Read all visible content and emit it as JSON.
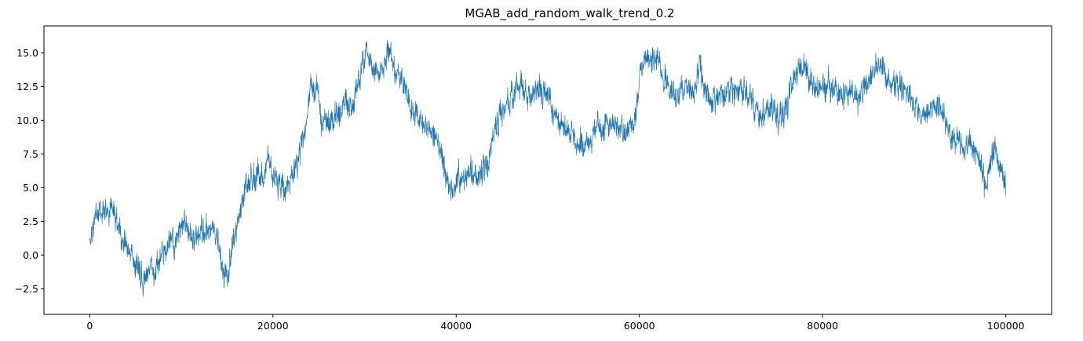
{
  "chart_data": {
    "type": "line",
    "title": "MGAB_add_random_walk_trend_0.2",
    "xlabel": "",
    "ylabel": "",
    "xlim": [
      -5000,
      105000
    ],
    "ylim": [
      -4.4,
      17.0
    ],
    "xticks": [
      0,
      20000,
      40000,
      60000,
      80000,
      100000
    ],
    "xtick_labels": [
      "0",
      "20000",
      "40000",
      "60000",
      "80000",
      "100000"
    ],
    "yticks": [
      -2.5,
      0.0,
      2.5,
      5.0,
      7.5,
      10.0,
      12.5,
      15.0
    ],
    "ytick_labels": [
      "−2.5",
      "0.0",
      "2.5",
      "5.0",
      "7.5",
      "10.0",
      "12.5",
      "15.0"
    ],
    "grid": false,
    "series": [
      {
        "color": "#1f77b4",
        "noise_amplitude": 0.6,
        "x": [
          0,
          400,
          1000,
          1800,
          2400,
          3000,
          3600,
          4200,
          5000,
          5800,
          6600,
          7400,
          8000,
          8800,
          9500,
          10300,
          11000,
          11800,
          12500,
          13300,
          14000,
          14500,
          15000,
          15600,
          16400,
          17200,
          18000,
          18800,
          19600,
          20400,
          21200,
          22000,
          22800,
          23600,
          24200,
          24800,
          25400,
          26200,
          27000,
          27800,
          28600,
          29400,
          30200,
          31000,
          31800,
          32600,
          33400,
          34200,
          35000,
          35800,
          36600,
          37400,
          38200,
          39000,
          39600,
          40200,
          41000,
          41800,
          42600,
          43400,
          44200,
          45000,
          45800,
          46600,
          47400,
          48200,
          49000,
          49800,
          50600,
          51400,
          52200,
          53000,
          53800,
          54600,
          55400,
          56200,
          57000,
          57800,
          58600,
          59400,
          60200,
          61000,
          61800,
          62600,
          63400,
          64200,
          65000,
          65800,
          66600,
          67400,
          68200,
          69000,
          69800,
          70600,
          71400,
          72200,
          73000,
          73800,
          74600,
          75400,
          76200,
          77000,
          77800,
          78600,
          79400,
          80200,
          81000,
          81800,
          82600,
          83400,
          84200,
          85000,
          85800,
          86600,
          87400,
          88200,
          89000,
          89800,
          90600,
          91400,
          92200,
          93000,
          93800,
          94600,
          95400,
          96200,
          97000,
          97800,
          98600,
          99400,
          100000
        ],
        "y": [
          0.8,
          2.2,
          3.2,
          3.1,
          3.6,
          2.4,
          1.2,
          0.5,
          -0.6,
          -1.8,
          -1.2,
          -0.8,
          0.2,
          1.0,
          0.8,
          2.4,
          1.6,
          1.2,
          1.9,
          2.1,
          1.2,
          -1.0,
          -2.2,
          0.6,
          2.8,
          5.4,
          5.8,
          6.0,
          7.0,
          5.2,
          4.8,
          5.6,
          7.2,
          9.8,
          12.8,
          12.2,
          9.8,
          10.0,
          10.2,
          11.2,
          11.0,
          13.2,
          15.2,
          14.2,
          13.6,
          15.0,
          13.6,
          12.8,
          11.0,
          10.8,
          9.8,
          9.2,
          7.8,
          5.6,
          4.6,
          5.8,
          6.2,
          5.8,
          6.0,
          6.4,
          9.0,
          10.6,
          11.4,
          12.4,
          12.2,
          11.6,
          12.8,
          11.8,
          10.8,
          9.8,
          9.2,
          8.8,
          8.2,
          8.6,
          9.4,
          9.2,
          9.8,
          9.6,
          9.0,
          9.8,
          13.8,
          15.0,
          14.4,
          13.6,
          12.0,
          11.6,
          12.4,
          12.2,
          13.8,
          11.8,
          11.4,
          11.8,
          12.6,
          12.0,
          12.4,
          11.4,
          10.4,
          10.6,
          10.8,
          10.0,
          11.4,
          13.2,
          14.0,
          13.0,
          12.2,
          12.4,
          12.8,
          11.6,
          11.8,
          12.2,
          11.6,
          12.8,
          14.2,
          13.8,
          12.2,
          12.6,
          12.4,
          11.0,
          10.4,
          10.2,
          11.2,
          10.6,
          9.0,
          8.4,
          8.0,
          8.2,
          7.2,
          5.0,
          7.8,
          6.8,
          5.0
        ]
      }
    ]
  }
}
